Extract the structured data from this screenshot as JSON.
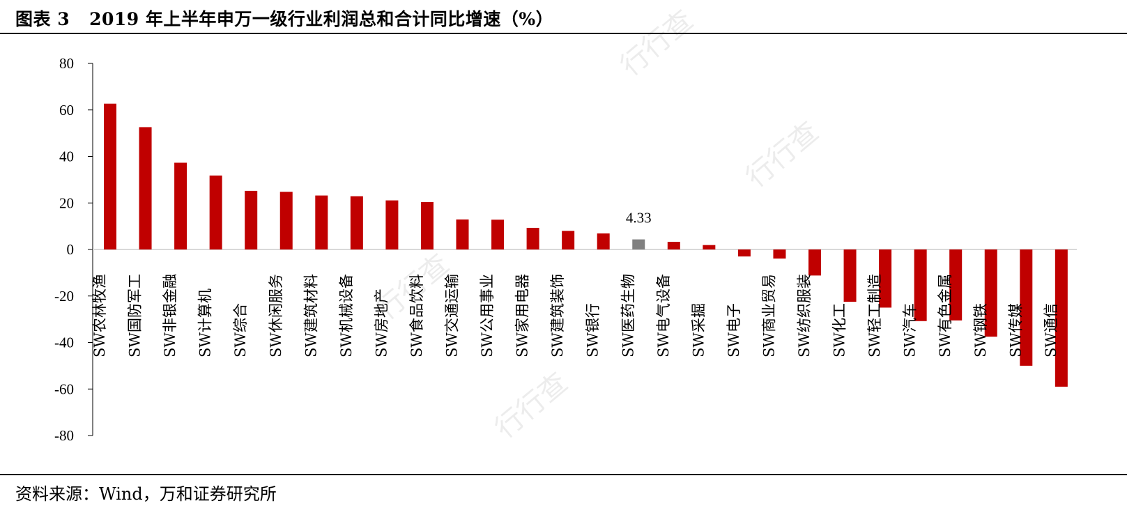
{
  "header": {
    "figure_label": "图表 3",
    "title": "2019 年上半年申万一级行业利润总和合计同比增速（%）"
  },
  "footer": {
    "source": "资料来源：Wind，万和证券研究所"
  },
  "colors": {
    "bar_positive": "#c00000",
    "bar_highlight": "#808080",
    "axis": "#000000",
    "zero_line": "#d9d9d9"
  },
  "chart_data": {
    "type": "bar",
    "title": "",
    "xlabel": "",
    "ylabel": "",
    "ylim": [
      -80,
      80
    ],
    "yticks": [
      80,
      60,
      40,
      20,
      0,
      -20,
      -40,
      -60,
      -80
    ],
    "grid": false,
    "legend": "none",
    "categories": [
      "SW农林牧渔",
      "SW国防军工",
      "SW非银金融",
      "SW计算机",
      "SW综合",
      "SW休闲服务",
      "SW建筑材料",
      "SW机械设备",
      "SW房地产",
      "SW食品饮料",
      "SW交通运输",
      "SW公用事业",
      "SW家用电器",
      "SW建筑装饰",
      "SW银行",
      "SW医药生物",
      "SW电气设备",
      "SW采掘",
      "SW电子",
      "SW商业贸易",
      "SW纺织服装",
      "SW化工",
      "SW轻工制造",
      "SW汽车",
      "SW有色金属",
      "SW钢铁",
      "SW传媒",
      "SW通信"
    ],
    "values": [
      62.7,
      52.6,
      37.3,
      31.8,
      25.2,
      24.8,
      23.2,
      22.9,
      21.1,
      20.4,
      12.9,
      12.8,
      9.3,
      8.0,
      6.9,
      4.33,
      3.3,
      1.9,
      -3.0,
      -3.9,
      -11.2,
      -22.5,
      -25.0,
      -30.8,
      -30.5,
      -37.5,
      -50.0,
      -59.0
    ],
    "highlight_index": 15,
    "annotations": [
      {
        "category": "SW医药生物",
        "text": "4.33"
      }
    ]
  },
  "watermarks": [
    "行行查",
    "行行查",
    "行行查",
    "行行查"
  ]
}
